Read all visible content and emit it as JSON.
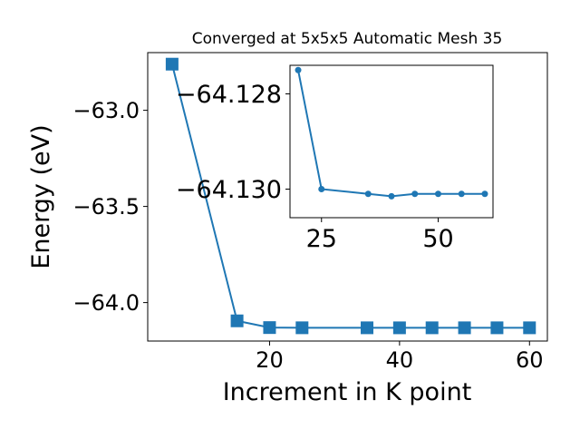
{
  "chart_data": [
    {
      "type": "line",
      "title": "Converged at 5x5x5 Automatic Mesh 35",
      "xlabel": "Increment in K point",
      "ylabel": "Energy (eV)",
      "xlim": [
        1.25,
        62.75
      ],
      "ylim": [
        -64.2,
        -62.7
      ],
      "xticks": [
        20,
        40,
        60
      ],
      "yticks": [
        -63.0,
        -63.5,
        -64.0
      ],
      "xtick_labels": [
        "20",
        "40",
        "60"
      ],
      "ytick_labels": [
        "−63.0",
        "−63.5",
        "−64.0"
      ],
      "marker": "square",
      "color": "#1f77b4",
      "grid": false,
      "series": [
        {
          "x": [
            5,
            15,
            20,
            25,
            35,
            40,
            45,
            50,
            55,
            60
          ],
          "y": [
            -62.76,
            -64.095,
            -64.13,
            -64.131,
            -64.1311,
            -64.1312,
            -64.1311,
            -64.1311,
            -64.1311,
            -64.1311
          ]
        }
      ]
    },
    {
      "type": "line",
      "title": "",
      "xlabel": "",
      "ylabel": "",
      "xlim": [
        18.25,
        61.75
      ],
      "ylim": [
        -64.1306,
        -64.1274
      ],
      "xticks": [
        25,
        50
      ],
      "yticks": [
        -64.13,
        -64.128
      ],
      "xtick_labels": [
        "25",
        "50"
      ],
      "ytick_labels": [
        "−64.130",
        "−64.128"
      ],
      "marker": "circle",
      "color": "#1f77b4",
      "grid": false,
      "series": [
        {
          "x": [
            20,
            25,
            35,
            40,
            45,
            50,
            55,
            60
          ],
          "y": [
            -64.1275,
            -64.13,
            -64.1301,
            -64.13015,
            -64.1301,
            -64.1301,
            -64.1301,
            -64.1301
          ]
        }
      ]
    }
  ]
}
